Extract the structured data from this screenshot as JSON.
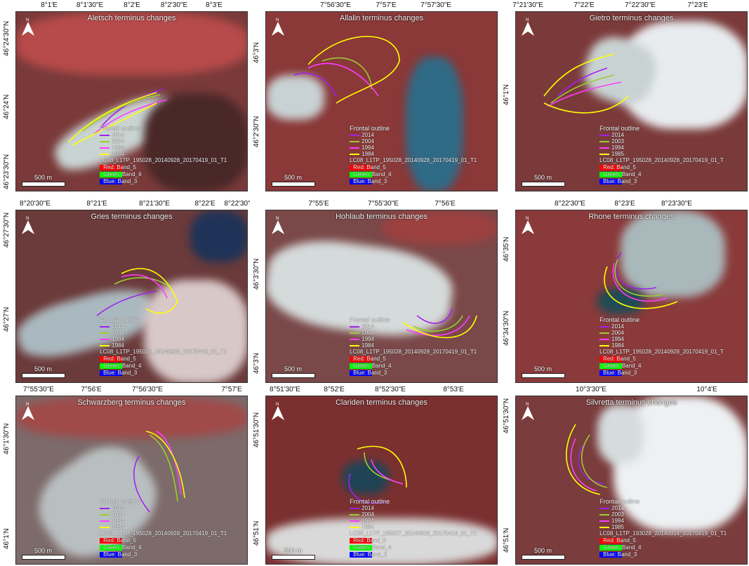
{
  "legend_labels": {
    "outline": "Frontal outline",
    "red": "Red:   Band_5",
    "green": "Green: Band_4",
    "blue": "Blue:  Band_3"
  },
  "colors": {
    "y2014": "#a020f0",
    "y2004": "#9acd32",
    "y1994": "#ff3cff",
    "y1984": "#ffff00",
    "swatch_red": "#ff0000",
    "swatch_green": "#00ff00",
    "swatch_blue": "#0000ff"
  },
  "panels": [
    {
      "title": "Aletsch terminus changes",
      "top_ticks": [
        "8°1'E",
        "8°1'30\"E",
        "8°2'E",
        "8°2'30\"E",
        "8°3'E"
      ],
      "left_ticks": [
        "46°24'30\"N",
        "46°24'N",
        "46°23'30\"N"
      ],
      "years": [
        "2014",
        "2004",
        "1994",
        "1984"
      ],
      "scene": "LC08_L1TP_195028_20140928_20170419_01_T1",
      "scale": "500 m"
    },
    {
      "title": "Allalin terminus changes",
      "top_ticks": [
        "7°56'30\"E",
        "7°57'E",
        "7°57'30\"E"
      ],
      "left_ticks": [
        "46°3'N",
        "46°2'30\"N"
      ],
      "years": [
        "2014",
        "2004",
        "1994",
        "1984"
      ],
      "scene": "LC08_L1TP_195028_20140928_20170419_01_T1",
      "scale": "500 m"
    },
    {
      "title": "Gietro terminus changes",
      "top_ticks": [
        "7°21'30\"E",
        "7°22'E",
        "7°22'30\"E",
        "7°23'E"
      ],
      "left_ticks": [
        "46°1'N"
      ],
      "years": [
        "2014",
        "2003",
        "1994",
        "1985"
      ],
      "scene": "LC08_L1TP_195028_20140928_20170419_01_T",
      "scale": "500 m"
    },
    {
      "title": "Gries terminus changes",
      "top_ticks": [
        "8°20'30\"E",
        "8°21'E",
        "8°21'30\"E",
        "8°22'E",
        "8°22'30\""
      ],
      "left_ticks": [
        "46°27'30\"N",
        "46°27'N"
      ],
      "years": [
        "2014",
        "2004",
        "1994",
        "1984"
      ],
      "scene": "LC08_L1TP_195028_20140928_20170419_01_T1",
      "scale": "500 m"
    },
    {
      "title": "Hohlaub terminus changes",
      "top_ticks": [
        "7°55'E",
        "7°55'30\"E",
        "7°56'E"
      ],
      "left_ticks": [
        "46°3'30\"N",
        "46°3'N"
      ],
      "years": [
        "2014",
        "2004",
        "1994",
        "1984"
      ],
      "scene": "LC08_L1TP_195028_20140928_20170419_01_T1",
      "scale": "500 m"
    },
    {
      "title": "Rhone terminus changes",
      "top_ticks": [
        "8°22'30\"E",
        "8°23'E",
        "8°23'30\"E"
      ],
      "left_ticks": [
        "46°35'N",
        "46°34'30\"N"
      ],
      "years": [
        "2014",
        "2004",
        "1994",
        "1984"
      ],
      "scene": "LC08_L1TP_195028_20140928_20170419_01_T",
      "scale": "500 m"
    },
    {
      "title": "Schwarzberg terminus changes",
      "top_ticks": [
        "7°55'30\"E",
        "7°56'E",
        "7°56'30\"E",
        "7°57'E"
      ],
      "left_ticks": [
        "46°1'30\"N",
        "46°1'N"
      ],
      "years": [
        "2014",
        "2004",
        "1994",
        "1984"
      ],
      "scene": "LC08_L1TP_195028_20140928_20170419_01_T1",
      "scale": "500 m"
    },
    {
      "title": "Clariden terminus changes",
      "top_ticks": [
        "8°51'30\"E",
        "8°52'E",
        "8°52'30\"E",
        "8°53'E"
      ],
      "left_ticks": [
        "46°51'30\"N",
        "46°51'N"
      ],
      "years": [
        "2014",
        "2004",
        "1994",
        "1984"
      ],
      "scene": "LC08_L1TP_195027_20140928_20170419_01_T1",
      "scale": "500 m"
    },
    {
      "title": "Silvretta terminus changes",
      "top_ticks": [
        "10°3'30\"E",
        "10°4'E"
      ],
      "left_ticks": [
        "46°51'30\"N",
        "46°51'N"
      ],
      "years": [
        "2014",
        "2003",
        "1994",
        "1985"
      ],
      "scene": "LC08_L1TP_193028_20140914_20170419_01_T1",
      "scale": "500 m"
    }
  ]
}
